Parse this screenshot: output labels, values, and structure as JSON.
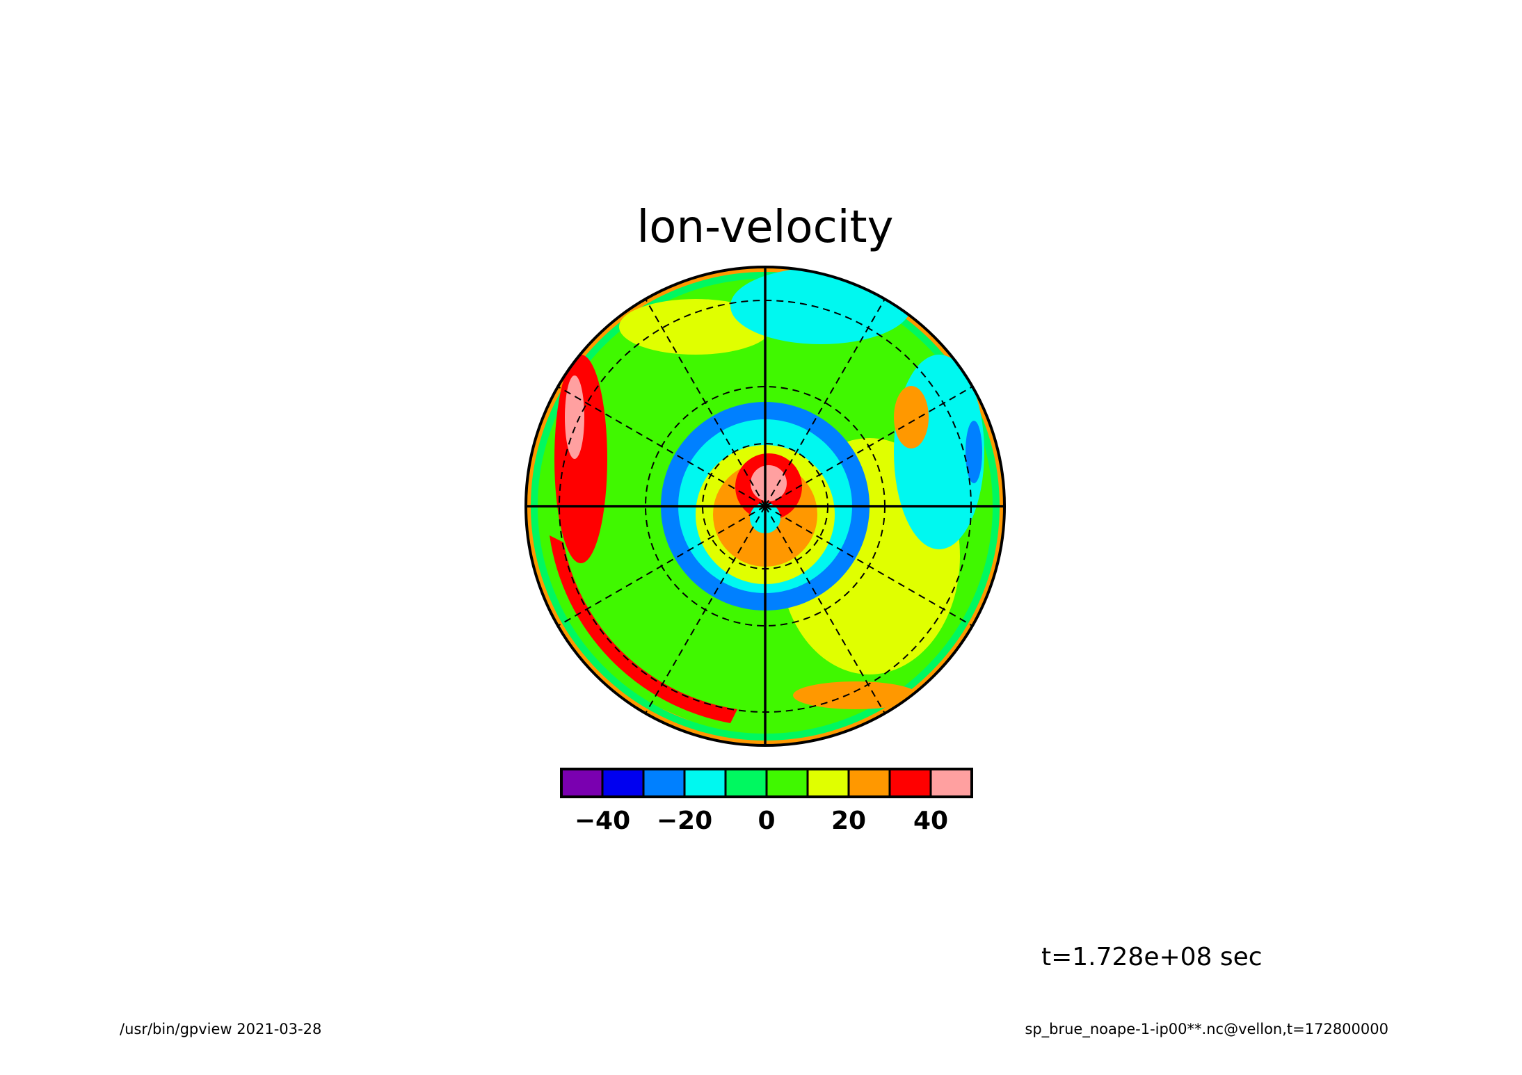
{
  "chart_data": {
    "type": "heatmap",
    "projection": "polar-stereographic",
    "title": "lon-velocity",
    "colorbar": {
      "levels": [
        -50,
        -40,
        -30,
        -20,
        -10,
        0,
        10,
        20,
        30,
        40,
        50
      ],
      "colors": [
        "#7a00b0",
        "#0000f0",
        "#0080ff",
        "#00f8f0",
        "#00f860",
        "#40f800",
        "#e0ff00",
        "#ff9800",
        "#ff0000",
        "#ffa0a0"
      ],
      "tick_labels": [
        "-40",
        "-20",
        "0",
        "20",
        "40"
      ],
      "tick_values": [
        -40,
        -20,
        0,
        20,
        40
      ]
    },
    "grid": true,
    "annotation": "t=1.728e+08 sec"
  },
  "footer": {
    "left": "/usr/bin/gpview  2021-03-28",
    "right": "sp_brue_noape-1-ip00**.nc@vellon,t=172800000"
  }
}
